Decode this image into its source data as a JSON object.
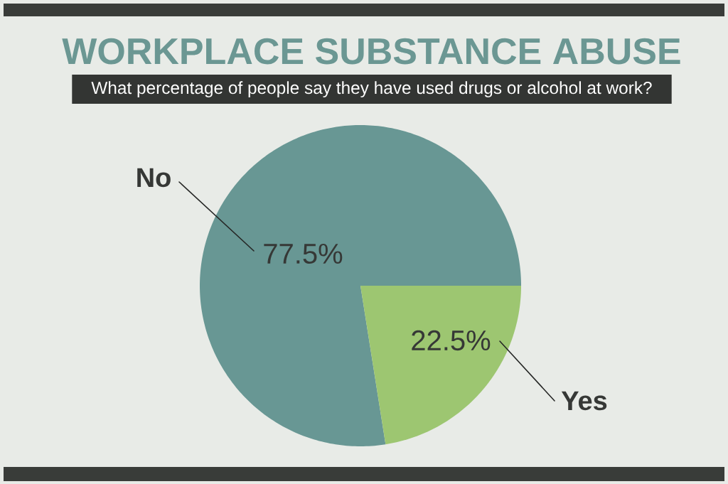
{
  "chart_data": {
    "type": "pie",
    "title": "WORKPLACE SUBSTANCE ABUSE",
    "subtitle": "What percentage of people say they have used drugs or alcohol at work?",
    "categories": [
      "No",
      "Yes"
    ],
    "values": [
      77.5,
      22.5
    ],
    "value_labels": [
      "77.5%",
      "22.5%"
    ],
    "colors": [
      "#689794",
      "#9dc671"
    ]
  }
}
